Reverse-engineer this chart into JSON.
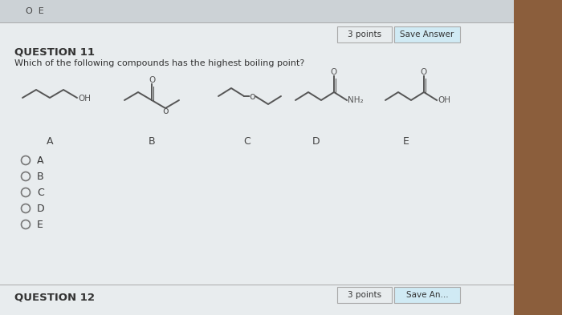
{
  "bg_color": "#d8dde0",
  "panel_color": "#e8ecee",
  "title_prev": "O E",
  "question_label": "QUESTION 11",
  "question_text": "Which of the following compounds has the highest boiling point?",
  "points_text": "3 points",
  "save_button_text": "Save Answer",
  "save_button_bg": "#d0eaf4",
  "molecule_labels": [
    "A",
    "B",
    "C",
    "D",
    "E"
  ],
  "radio_options": [
    "A",
    "B",
    "C",
    "D",
    "E"
  ],
  "next_question": "QUESTION 12",
  "next_points": "3 points",
  "next_save": "Save An...",
  "line_color": "#555555",
  "label_color": "#333333",
  "brown_color": "#8B5E3C"
}
